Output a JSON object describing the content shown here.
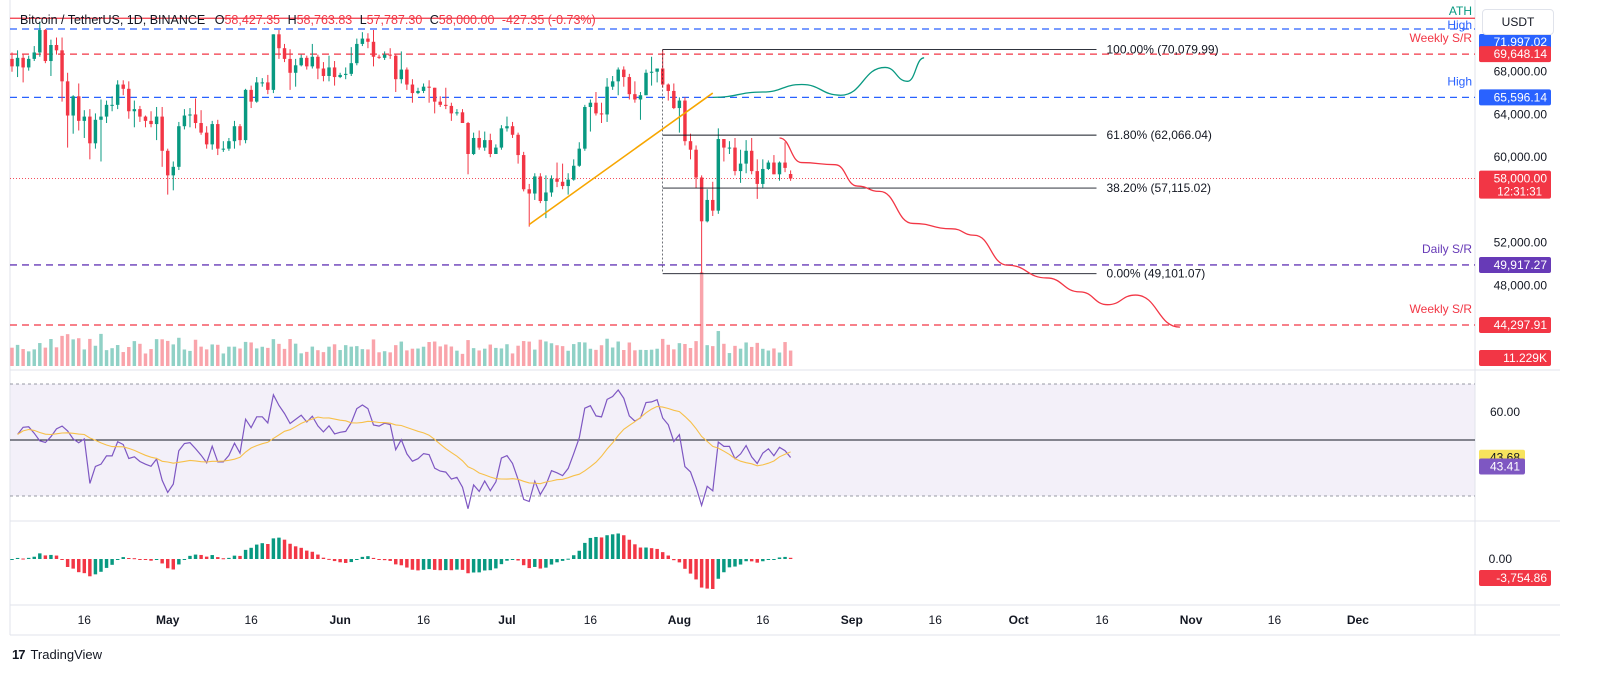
{
  "header": {
    "symbol": "Bitcoin / TetherUS, 1D, BINANCE",
    "o_label": "O",
    "o": "58,427.35",
    "h_label": "H",
    "h": "58,763.83",
    "l_label": "L",
    "l": "57,787.30",
    "c_label": "C",
    "c": "58,000.00",
    "change": "-427.35 (-0.73%)"
  },
  "currency_button": "USDT",
  "branding": "TradingView",
  "price_axis_ticks": [
    "68,000.00",
    "64,000.00",
    "60,000.00",
    "52,000.00",
    "48,000.00"
  ],
  "price_labels": [
    {
      "name": "ath",
      "text": "71,997.02",
      "color": "#2962ff",
      "caption": "High",
      "top_caption": "ATH"
    },
    {
      "name": "weekly-sr-top",
      "text": "69,648.14",
      "color": "#f23645",
      "caption": "Weekly S/R"
    },
    {
      "name": "high",
      "text": "65,596.14",
      "color": "#2962ff",
      "caption": "High"
    },
    {
      "name": "last-price",
      "text": "58,000.00",
      "color": "#f23645",
      "sub": "12:31:31"
    },
    {
      "name": "daily-sr",
      "text": "49,917.27",
      "color": "#673ab7",
      "caption": "Daily S/R"
    },
    {
      "name": "weekly-sr-bottom",
      "text": "44,297.91",
      "color": "#f23645",
      "caption": "Weekly S/R"
    },
    {
      "name": "volume",
      "text": "11.229K",
      "color": "#f23645"
    }
  ],
  "fib_labels": [
    "100.00% (70,079.99)",
    "61.80% (62,066.04)",
    "38.20% (57,115.02)",
    "0.00% (49,101.07)"
  ],
  "rsi_axis_ticks": [
    "60.00",
    "40.00"
  ],
  "rsi_labels": [
    {
      "name": "rsi-ma",
      "text": "43.68",
      "color": "#f7e35d",
      "textcolor": "#131722"
    },
    {
      "name": "rsi",
      "text": "43.41",
      "color": "#7e57c2",
      "textcolor": "#ffffff"
    }
  ],
  "macd_axis_ticks": [
    "0.00"
  ],
  "macd_label": {
    "text": "-3,754.86",
    "color": "#f23645"
  },
  "time_axis": [
    "16",
    "May",
    "16",
    "Jun",
    "16",
    "Jul",
    "16",
    "Aug",
    "16",
    "Sep",
    "16",
    "Oct",
    "16",
    "Nov",
    "16",
    "Dec"
  ],
  "chart_data": {
    "type": "candlestick",
    "title": "Bitcoin / TetherUS, 1D, BINANCE",
    "interval": "1D",
    "currency": "USDT",
    "x_range": [
      "2024-04-03",
      "2024-12-19"
    ],
    "price_axis": {
      "ylim": [
        44000,
        73200
      ]
    },
    "horizontal_levels": [
      {
        "label": "ATH",
        "value": 73000,
        "color": "#f23645",
        "style": "solid"
      },
      {
        "label": "High",
        "value": 71997.02,
        "color": "#2962ff",
        "style": "dashed"
      },
      {
        "label": "Weekly S/R",
        "value": 69648.14,
        "color": "#f23645",
        "style": "dashed"
      },
      {
        "label": "High",
        "value": 65596.14,
        "color": "#2962ff",
        "style": "dashed"
      },
      {
        "label": "Daily S/R",
        "value": 49917.27,
        "color": "#673ab7",
        "style": "dashed"
      },
      {
        "label": "Weekly S/R",
        "value": 44297.91,
        "color": "#f23645",
        "style": "dashed"
      }
    ],
    "last_price": 58000.0,
    "fibonacci": [
      {
        "level": "100.00%",
        "value": 70079.99
      },
      {
        "level": "61.80%",
        "value": 62066.04
      },
      {
        "level": "38.20%",
        "value": 57115.02
      },
      {
        "level": "0.00%",
        "value": 49101.07
      }
    ],
    "trendline": {
      "from": {
        "date": "2024-07-05",
        "value": 53700
      },
      "to": {
        "date": "2024-08-07",
        "value": 66000
      },
      "color": "#f7a600"
    },
    "projection_up": {
      "color": "#089981",
      "points": [
        [
          "2024-08-07",
          65600
        ],
        [
          "2024-08-16",
          66100
        ],
        [
          "2024-08-23",
          66800
        ],
        [
          "2024-08-30",
          65800
        ],
        [
          "2024-09-07",
          68400
        ],
        [
          "2024-09-11",
          67100
        ],
        [
          "2024-09-14",
          69300
        ]
      ]
    },
    "projection_down": {
      "color": "#f23645",
      "points": [
        [
          "2024-08-19",
          61800
        ],
        [
          "2024-08-23",
          59500
        ],
        [
          "2024-08-29",
          59300
        ],
        [
          "2024-09-02",
          57300
        ],
        [
          "2024-09-06",
          56800
        ],
        [
          "2024-09-12",
          53800
        ],
        [
          "2024-09-19",
          53300
        ],
        [
          "2024-09-23",
          52700
        ],
        [
          "2024-09-29",
          49900
        ],
        [
          "2024-10-06",
          48700
        ],
        [
          "2024-10-12",
          47400
        ],
        [
          "2024-10-17",
          46200
        ],
        [
          "2024-10-22",
          47100
        ],
        [
          "2024-10-30",
          44100
        ]
      ]
    },
    "ohlc": [
      [
        "2024-04-03",
        69200,
        69800,
        68000,
        68500
      ],
      [
        "2024-04-04",
        68500,
        70000,
        67500,
        69300
      ],
      [
        "2024-04-05",
        69300,
        69600,
        67000,
        68400
      ],
      [
        "2024-04-06",
        68400,
        69500,
        68100,
        69200
      ],
      [
        "2024-04-07",
        69200,
        70400,
        69000,
        69800
      ],
      [
        "2024-04-08",
        69800,
        72700,
        69400,
        71900
      ],
      [
        "2024-04-09",
        71900,
        72000,
        68800,
        69000
      ],
      [
        "2024-04-10",
        69000,
        71000,
        67600,
        70500
      ],
      [
        "2024-04-11",
        70500,
        71200,
        69600,
        70000
      ],
      [
        "2024-04-12",
        70000,
        71200,
        65200,
        67100
      ],
      [
        "2024-04-13",
        67100,
        67900,
        60900,
        63900
      ],
      [
        "2024-04-14",
        63900,
        65800,
        62200,
        65700
      ],
      [
        "2024-04-15",
        65700,
        66900,
        62500,
        63400
      ],
      [
        "2024-04-16",
        63400,
        64400,
        61800,
        63800
      ],
      [
        "2024-04-17",
        63800,
        64500,
        59800,
        61300
      ],
      [
        "2024-04-18",
        61300,
        64100,
        60800,
        63500
      ],
      [
        "2024-04-19",
        63500,
        65400,
        59600,
        63800
      ],
      [
        "2024-04-20",
        63800,
        65300,
        63200,
        64900
      ],
      [
        "2024-04-21",
        64900,
        65700,
        64300,
        64900
      ],
      [
        "2024-04-22",
        64900,
        67200,
        64500,
        66800
      ],
      [
        "2024-04-23",
        66800,
        67200,
        65800,
        66400
      ],
      [
        "2024-04-24",
        66400,
        67100,
        63600,
        64300
      ],
      [
        "2024-04-25",
        64300,
        65300,
        62800,
        64500
      ],
      [
        "2024-04-26",
        64500,
        64800,
        63300,
        63800
      ],
      [
        "2024-04-27",
        63800,
        63900,
        62800,
        63400
      ],
      [
        "2024-04-28",
        63400,
        64300,
        62800,
        63100
      ],
      [
        "2024-04-29",
        63100,
        64700,
        61600,
        63800
      ],
      [
        "2024-04-30",
        63800,
        64700,
        59100,
        60600
      ],
      [
        "2024-05-01",
        60600,
        60800,
        56500,
        58300
      ],
      [
        "2024-05-02",
        58300,
        59600,
        56900,
        59100
      ],
      [
        "2024-05-03",
        59100,
        63300,
        58800,
        62900
      ],
      [
        "2024-05-04",
        62900,
        64500,
        62600,
        63900
      ],
      [
        "2024-05-05",
        63900,
        64600,
        62800,
        64000
      ],
      [
        "2024-05-06",
        64000,
        65500,
        62700,
        63200
      ],
      [
        "2024-05-07",
        63200,
        64400,
        62100,
        62300
      ],
      [
        "2024-05-08",
        62300,
        62900,
        60800,
        61200
      ],
      [
        "2024-05-09",
        61200,
        63400,
        60700,
        63100
      ],
      [
        "2024-05-10",
        63100,
        63500,
        60200,
        60800
      ],
      [
        "2024-05-11",
        60800,
        61500,
        60500,
        60800
      ],
      [
        "2024-05-12",
        60800,
        61800,
        60600,
        61500
      ],
      [
        "2024-05-13",
        61500,
        63400,
        60800,
        62900
      ],
      [
        "2024-05-14",
        62900,
        63100,
        61100,
        61600
      ],
      [
        "2024-05-15",
        61600,
        66400,
        61300,
        66300
      ],
      [
        "2024-05-16",
        66300,
        66700,
        64600,
        65200
      ],
      [
        "2024-05-17",
        65200,
        67500,
        65100,
        67000
      ],
      [
        "2024-05-18",
        67000,
        67400,
        66600,
        67000
      ],
      [
        "2024-05-19",
        67000,
        67700,
        65900,
        66300
      ],
      [
        "2024-05-20",
        66300,
        71500,
        66000,
        71500
      ],
      [
        "2024-05-21",
        71500,
        71900,
        69200,
        70200
      ],
      [
        "2024-05-22",
        70200,
        70600,
        68900,
        69200
      ],
      [
        "2024-05-23",
        69200,
        70100,
        66300,
        67900
      ],
      [
        "2024-05-24",
        67900,
        69200,
        66600,
        68600
      ],
      [
        "2024-05-25",
        68600,
        69600,
        68500,
        69300
      ],
      [
        "2024-05-26",
        69300,
        69500,
        68200,
        68500
      ],
      [
        "2024-05-27",
        68500,
        70600,
        68300,
        69400
      ],
      [
        "2024-05-28",
        69400,
        69600,
        67300,
        68300
      ],
      [
        "2024-05-29",
        68300,
        68900,
        67100,
        67600
      ],
      [
        "2024-05-30",
        67600,
        69500,
        67100,
        68400
      ],
      [
        "2024-05-31",
        68400,
        69000,
        66700,
        67500
      ],
      [
        "2024-06-01",
        67500,
        67900,
        67400,
        67700
      ],
      [
        "2024-06-02",
        67700,
        68400,
        67300,
        67800
      ],
      [
        "2024-06-03",
        67800,
        70300,
        67600,
        68800
      ],
      [
        "2024-06-04",
        68800,
        71100,
        68600,
        70600
      ],
      [
        "2024-06-05",
        70600,
        71700,
        70400,
        71100
      ],
      [
        "2024-06-06",
        71100,
        71600,
        70200,
        70800
      ],
      [
        "2024-06-07",
        70800,
        71900,
        68500,
        69400
      ],
      [
        "2024-06-08",
        69400,
        69600,
        69200,
        69300
      ],
      [
        "2024-06-09",
        69300,
        69900,
        69100,
        69600
      ],
      [
        "2024-06-10",
        69600,
        70200,
        69200,
        69500
      ],
      [
        "2024-06-11",
        69500,
        69600,
        66100,
        67300
      ],
      [
        "2024-06-12",
        67300,
        69900,
        66900,
        68200
      ],
      [
        "2024-06-13",
        68200,
        68400,
        66300,
        66800
      ],
      [
        "2024-06-14",
        66800,
        67300,
        65100,
        66000
      ],
      [
        "2024-06-15",
        66000,
        66500,
        65900,
        66200
      ],
      [
        "2024-06-16",
        66200,
        66900,
        66000,
        66600
      ],
      [
        "2024-06-17",
        66600,
        67200,
        65100,
        66500
      ],
      [
        "2024-06-18",
        66500,
        66500,
        64100,
        65200
      ],
      [
        "2024-06-19",
        65200,
        65700,
        64700,
        64900
      ],
      [
        "2024-06-20",
        64900,
        66500,
        64500,
        64800
      ],
      [
        "2024-06-21",
        64800,
        65100,
        63400,
        64100
      ],
      [
        "2024-06-22",
        64100,
        64500,
        63900,
        64200
      ],
      [
        "2024-06-23",
        64200,
        64500,
        63200,
        63200
      ],
      [
        "2024-06-24",
        63200,
        63300,
        58400,
        60300
      ],
      [
        "2024-06-25",
        60300,
        62300,
        60200,
        61800
      ],
      [
        "2024-06-26",
        61800,
        62500,
        60700,
        60900
      ],
      [
        "2024-06-27",
        60900,
        62400,
        60600,
        61600
      ],
      [
        "2024-06-28",
        61600,
        62200,
        60000,
        60300
      ],
      [
        "2024-06-29",
        60300,
        61200,
        60300,
        60900
      ],
      [
        "2024-06-30",
        60900,
        63000,
        60700,
        62700
      ],
      [
        "2024-07-01",
        62700,
        63800,
        62400,
        62900
      ],
      [
        "2024-07-02",
        62900,
        63300,
        61800,
        62100
      ],
      [
        "2024-07-03",
        62100,
        62300,
        59400,
        60200
      ],
      [
        "2024-07-04",
        60200,
        60500,
        56800,
        57000
      ],
      [
        "2024-07-05",
        57000,
        57500,
        53500,
        56600
      ],
      [
        "2024-07-06",
        56600,
        58500,
        56000,
        58200
      ],
      [
        "2024-07-07",
        58200,
        58500,
        55700,
        55900
      ],
      [
        "2024-07-08",
        55900,
        58300,
        54300,
        56700
      ],
      [
        "2024-07-09",
        56700,
        58300,
        56300,
        58000
      ],
      [
        "2024-07-10",
        58000,
        59500,
        57200,
        57700
      ],
      [
        "2024-07-11",
        57700,
        59400,
        57000,
        57300
      ],
      [
        "2024-07-12",
        57300,
        58500,
        56500,
        57900
      ],
      [
        "2024-07-13",
        57900,
        59800,
        57800,
        59200
      ],
      [
        "2024-07-14",
        59200,
        61400,
        59100,
        60800
      ],
      [
        "2024-07-15",
        60800,
        64900,
        60600,
        64700
      ],
      [
        "2024-07-16",
        64700,
        65400,
        62400,
        65100
      ],
      [
        "2024-07-17",
        65100,
        66100,
        63900,
        64100
      ],
      [
        "2024-07-18",
        64100,
        65100,
        63200,
        64000
      ],
      [
        "2024-07-19",
        64000,
        67400,
        63300,
        66600
      ],
      [
        "2024-07-20",
        66600,
        67600,
        66300,
        67100
      ],
      [
        "2024-07-21",
        67100,
        68400,
        65800,
        68200
      ],
      [
        "2024-07-22",
        68200,
        68500,
        66600,
        67500
      ],
      [
        "2024-07-23",
        67500,
        67800,
        65400,
        65900
      ],
      [
        "2024-07-24",
        65900,
        67100,
        65100,
        65400
      ],
      [
        "2024-07-25",
        65400,
        66100,
        63500,
        65800
      ],
      [
        "2024-07-26",
        65800,
        68200,
        65800,
        67900
      ],
      [
        "2024-07-27",
        67900,
        69400,
        66700,
        68000
      ],
      [
        "2024-07-28",
        68000,
        68300,
        67000,
        68300
      ],
      [
        "2024-07-29",
        68300,
        70100,
        66500,
        66800
      ],
      [
        "2024-07-30",
        66800,
        66900,
        65300,
        66200
      ],
      [
        "2024-07-31",
        66200,
        66900,
        64500,
        64600
      ],
      [
        "2024-08-01",
        64600,
        65600,
        62300,
        65300
      ],
      [
        "2024-08-02",
        65300,
        65600,
        61100,
        61500
      ],
      [
        "2024-08-03",
        61500,
        62200,
        59800,
        60700
      ],
      [
        "2024-08-04",
        60700,
        61100,
        57100,
        58100
      ],
      [
        "2024-08-05",
        58100,
        58300,
        49100,
        54000
      ],
      [
        "2024-08-06",
        54000,
        57000,
        53900,
        56000
      ],
      [
        "2024-08-07",
        56000,
        57700,
        54500,
        55000
      ],
      [
        "2024-08-08",
        55000,
        62700,
        54700,
        61700
      ],
      [
        "2024-08-09",
        61700,
        61700,
        59600,
        60900
      ],
      [
        "2024-08-10",
        60900,
        61500,
        60300,
        60900
      ],
      [
        "2024-08-11",
        60900,
        61800,
        58300,
        58700
      ],
      [
        "2024-08-12",
        58700,
        60700,
        57600,
        59400
      ],
      [
        "2024-08-13",
        59400,
        61600,
        58500,
        60600
      ],
      [
        "2024-08-14",
        60600,
        61800,
        58400,
        58700
      ],
      [
        "2024-08-15",
        58700,
        59800,
        56100,
        57500
      ],
      [
        "2024-08-16",
        57500,
        59800,
        57100,
        58900
      ],
      [
        "2024-08-17",
        58900,
        59700,
        58800,
        59500
      ],
      [
        "2024-08-18",
        59500,
        60200,
        58400,
        58400
      ],
      [
        "2024-08-19",
        58400,
        59600,
        57800,
        59500
      ],
      [
        "2024-08-20",
        59500,
        61400,
        58600,
        59000
      ],
      [
        "2024-08-21",
        58427.35,
        58763.83,
        57787.3,
        58000.0
      ]
    ],
    "volume": {
      "last": "11.229K"
    },
    "rsi": {
      "ylim": [
        20,
        80
      ],
      "levels": [
        70,
        50,
        30
      ],
      "last": 43.41,
      "ma_last": 43.68
    },
    "macd": {
      "last": -3754.86
    }
  }
}
